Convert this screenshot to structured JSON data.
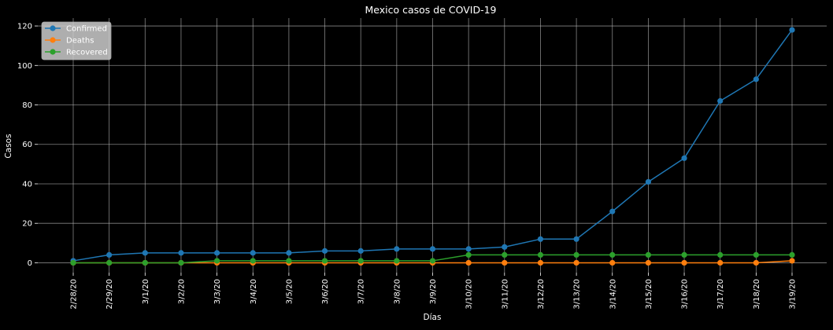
{
  "chart_data": {
    "type": "line",
    "title": "Mexico casos de COVID-19",
    "xlabel": "Días",
    "ylabel": "Casos",
    "categories": [
      "2/28/20",
      "2/29/20",
      "3/1/20",
      "3/2/20",
      "3/3/20",
      "3/4/20",
      "3/5/20",
      "3/6/20",
      "3/7/20",
      "3/8/20",
      "3/9/20",
      "3/10/20",
      "3/11/20",
      "3/12/20",
      "3/13/20",
      "3/14/20",
      "3/15/20",
      "3/16/20",
      "3/17/20",
      "3/18/20",
      "3/19/20"
    ],
    "ylim": [
      -5,
      124
    ],
    "yticks": [
      0,
      20,
      40,
      60,
      80,
      100,
      120
    ],
    "grid": true,
    "legend_position": "top-left",
    "series": [
      {
        "name": "Confirmed",
        "color": "#1f77b4",
        "values": [
          1,
          4,
          5,
          5,
          5,
          5,
          5,
          6,
          6,
          7,
          7,
          7,
          8,
          12,
          12,
          26,
          41,
          53,
          82,
          93,
          118
        ]
      },
      {
        "name": "Deaths",
        "color": "#ff7f0e",
        "values": [
          0,
          0,
          0,
          0,
          0,
          0,
          0,
          0,
          0,
          0,
          0,
          0,
          0,
          0,
          0,
          0,
          0,
          0,
          0,
          0,
          1
        ]
      },
      {
        "name": "Recovered",
        "color": "#2ca02c",
        "values": [
          0,
          0,
          0,
          0,
          1,
          1,
          1,
          1,
          1,
          1,
          1,
          4,
          4,
          4,
          4,
          4,
          4,
          4,
          4,
          4,
          4
        ]
      }
    ],
    "colors": {
      "background": "#000000",
      "grid": "#b0b0b0",
      "axis_text": "#ffffff",
      "legend_background": "#cccccc"
    }
  }
}
